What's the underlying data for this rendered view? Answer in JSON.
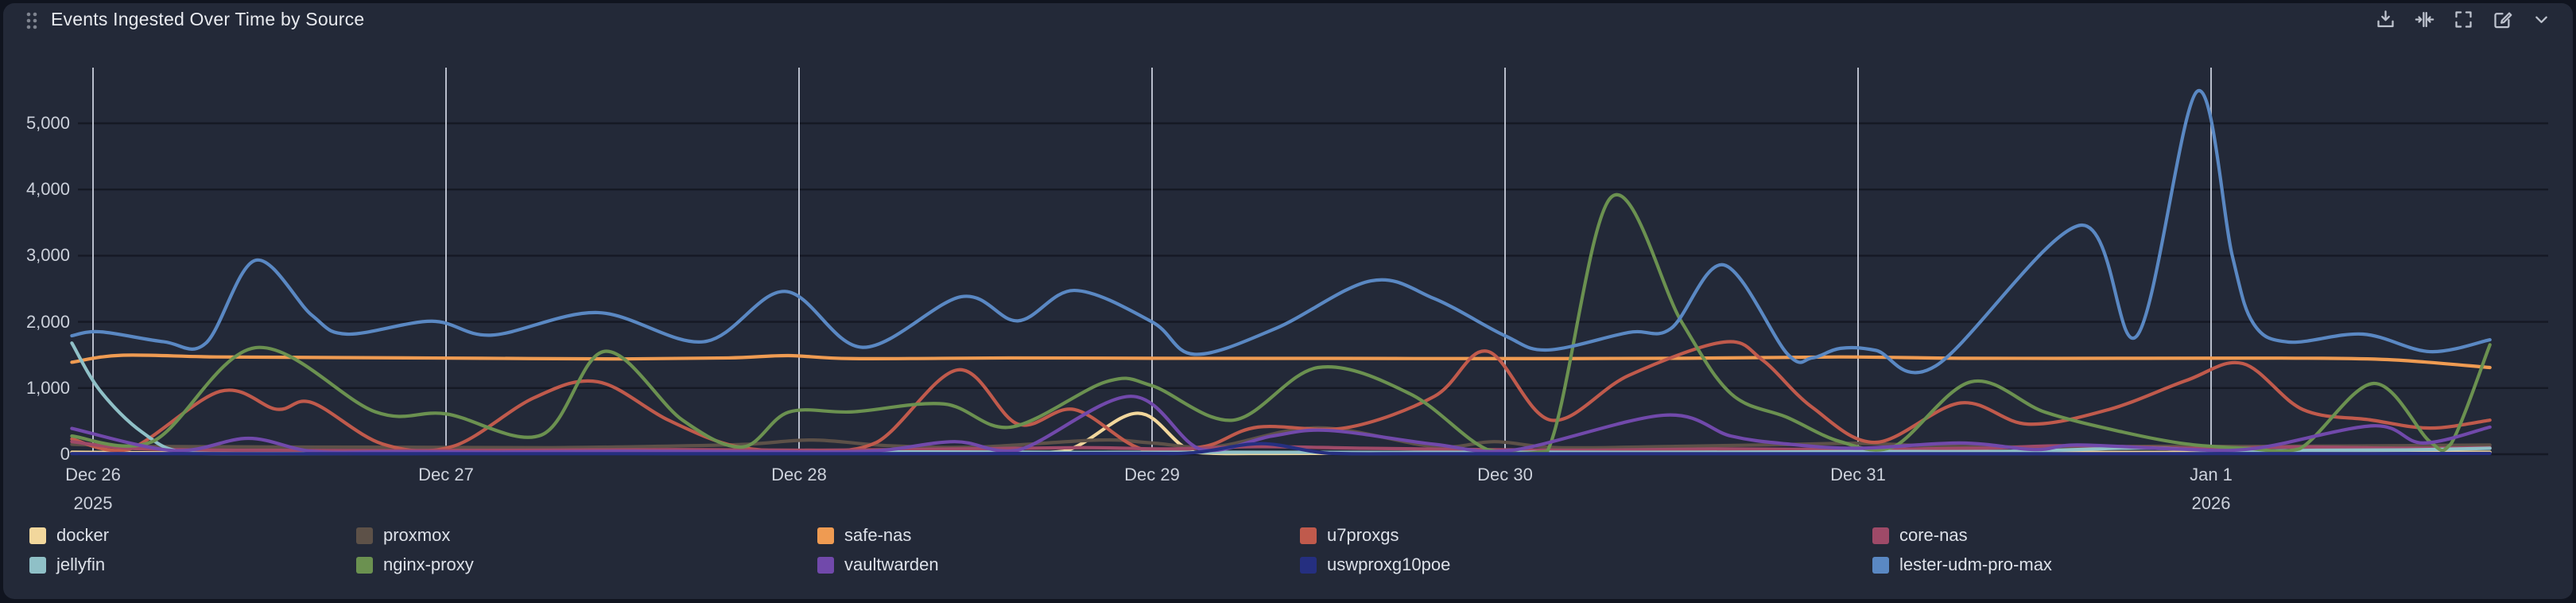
{
  "panel": {
    "title": "Events Ingested Over Time by Source"
  },
  "toolbar": {
    "icons": [
      {
        "name": "download-icon"
      },
      {
        "name": "collapse-columns-icon"
      },
      {
        "name": "fullscreen-icon"
      },
      {
        "name": "edit-icon"
      },
      {
        "name": "chevron-down-icon"
      }
    ]
  },
  "colors": {
    "panel_bg": "#232938",
    "page_bg": "#10141f",
    "h_grid": "#151924",
    "v_grid": "#c9cedb",
    "axis_text": "#ccd1db",
    "title_text": "#e8eaef"
  },
  "chart_data": {
    "type": "line",
    "title": "Events Ingested Over Time by Source",
    "xlabel": "",
    "ylabel": "",
    "grid": {
      "horizontal": true,
      "vertical": true
    },
    "legend_position": "bottom",
    "x_unit": "days since Dec 26 2025 00:00",
    "x_range": [
      -0.06,
      6.95
    ],
    "ylim": [
      0,
      5840
    ],
    "y_ticks": [
      {
        "label": "0",
        "value": 0
      },
      {
        "label": "1,000",
        "value": 1000
      },
      {
        "label": "2,000",
        "value": 2000
      },
      {
        "label": "3,000",
        "value": 3000
      },
      {
        "label": "4,000",
        "value": 4000
      },
      {
        "label": "5,000",
        "value": 5000
      }
    ],
    "x_ticks": [
      {
        "label": "Dec 26",
        "sublabel": "2025",
        "t": 0
      },
      {
        "label": "Dec 27",
        "sublabel": "",
        "t": 1
      },
      {
        "label": "Dec 28",
        "sublabel": "",
        "t": 2
      },
      {
        "label": "Dec 29",
        "sublabel": "",
        "t": 3
      },
      {
        "label": "Dec 30",
        "sublabel": "",
        "t": 4
      },
      {
        "label": "Dec 31",
        "sublabel": "",
        "t": 5
      },
      {
        "label": "Jan 1",
        "sublabel": "2026",
        "t": 6
      }
    ],
    "series": [
      {
        "name": "docker",
        "color": "#f2d79c",
        "points": [
          [
            -0.06,
            30
          ],
          [
            0.3,
            20
          ],
          [
            0.7,
            28
          ],
          [
            1.1,
            22
          ],
          [
            1.5,
            30
          ],
          [
            1.9,
            55
          ],
          [
            2.2,
            30
          ],
          [
            2.5,
            22
          ],
          [
            2.75,
            45
          ],
          [
            2.96,
            620
          ],
          [
            3.12,
            30
          ],
          [
            3.35,
            12
          ],
          [
            3.7,
            18
          ],
          [
            4.0,
            25
          ],
          [
            4.2,
            70
          ],
          [
            4.45,
            25
          ],
          [
            4.8,
            30
          ],
          [
            5.1,
            40
          ],
          [
            5.5,
            30
          ],
          [
            5.9,
            28
          ],
          [
            6.3,
            35
          ],
          [
            6.79,
            30
          ]
        ]
      },
      {
        "name": "proxmox",
        "color": "#5d5148",
        "points": [
          [
            -0.06,
            150
          ],
          [
            0.15,
            118
          ],
          [
            0.5,
            110
          ],
          [
            0.9,
            105
          ],
          [
            1.3,
            100
          ],
          [
            1.6,
            120
          ],
          [
            1.85,
            150
          ],
          [
            2.04,
            215
          ],
          [
            2.25,
            130
          ],
          [
            2.5,
            108
          ],
          [
            2.85,
            215
          ],
          [
            3.0,
            170
          ],
          [
            3.18,
            115
          ],
          [
            3.47,
            400
          ],
          [
            3.8,
            115
          ],
          [
            3.97,
            190
          ],
          [
            4.15,
            100
          ],
          [
            4.5,
            120
          ],
          [
            4.78,
            145
          ],
          [
            5.0,
            165
          ],
          [
            5.25,
            120
          ],
          [
            5.55,
            110
          ],
          [
            5.85,
            120
          ],
          [
            6.1,
            118
          ],
          [
            6.4,
            125
          ],
          [
            6.79,
            140
          ]
        ]
      },
      {
        "name": "safe-nas",
        "color": "#ef9b52",
        "points": [
          [
            -0.06,
            1390
          ],
          [
            0.08,
            1495
          ],
          [
            0.35,
            1470
          ],
          [
            0.7,
            1460
          ],
          [
            1.1,
            1450
          ],
          [
            1.5,
            1440
          ],
          [
            1.8,
            1455
          ],
          [
            1.97,
            1490
          ],
          [
            2.15,
            1445
          ],
          [
            2.6,
            1455
          ],
          [
            3.0,
            1450
          ],
          [
            3.5,
            1448
          ],
          [
            4.0,
            1445
          ],
          [
            4.5,
            1450
          ],
          [
            4.95,
            1470
          ],
          [
            5.3,
            1450
          ],
          [
            5.8,
            1450
          ],
          [
            6.2,
            1452
          ],
          [
            6.5,
            1430
          ],
          [
            6.79,
            1310
          ]
        ]
      },
      {
        "name": "u7proxgs",
        "color": "#c05a4c",
        "points": [
          [
            -0.06,
            230
          ],
          [
            0.1,
            70
          ],
          [
            0.36,
            950
          ],
          [
            0.52,
            680
          ],
          [
            0.62,
            780
          ],
          [
            0.82,
            155
          ],
          [
            1.02,
            120
          ],
          [
            1.25,
            855
          ],
          [
            1.43,
            1095
          ],
          [
            1.63,
            515
          ],
          [
            1.82,
            120
          ],
          [
            2.02,
            60
          ],
          [
            2.22,
            180
          ],
          [
            2.45,
            1275
          ],
          [
            2.62,
            455
          ],
          [
            2.78,
            675
          ],
          [
            2.97,
            80
          ],
          [
            3.15,
            120
          ],
          [
            3.3,
            410
          ],
          [
            3.55,
            400
          ],
          [
            3.8,
            875
          ],
          [
            3.95,
            1555
          ],
          [
            4.13,
            515
          ],
          [
            4.35,
            1190
          ],
          [
            4.62,
            1695
          ],
          [
            4.73,
            1420
          ],
          [
            4.87,
            710
          ],
          [
            5.05,
            180
          ],
          [
            5.29,
            775
          ],
          [
            5.48,
            455
          ],
          [
            5.71,
            675
          ],
          [
            5.93,
            1115
          ],
          [
            6.09,
            1370
          ],
          [
            6.26,
            675
          ],
          [
            6.45,
            520
          ],
          [
            6.62,
            395
          ],
          [
            6.79,
            515
          ]
        ]
      },
      {
        "name": "core-nas",
        "color": "#9e4a68",
        "points": [
          [
            -0.06,
            190
          ],
          [
            0.12,
            85
          ],
          [
            0.45,
            60
          ],
          [
            0.85,
            55
          ],
          [
            1.25,
            60
          ],
          [
            1.65,
            70
          ],
          [
            2.05,
            60
          ],
          [
            2.45,
            80
          ],
          [
            2.8,
            100
          ],
          [
            3.05,
            80
          ],
          [
            3.3,
            115
          ],
          [
            3.6,
            90
          ],
          [
            3.95,
            70
          ],
          [
            4.25,
            60
          ],
          [
            4.6,
            80
          ],
          [
            5.0,
            70
          ],
          [
            5.35,
            90
          ],
          [
            5.6,
            130
          ],
          [
            5.95,
            90
          ],
          [
            6.25,
            110
          ],
          [
            6.55,
            90
          ],
          [
            6.79,
            100
          ]
        ]
      },
      {
        "name": "jellyfin",
        "color": "#8fc0c7",
        "points": [
          [
            -0.06,
            1680
          ],
          [
            0.02,
            960
          ],
          [
            0.14,
            330
          ],
          [
            0.27,
            20
          ],
          [
            0.6,
            10
          ],
          [
            1.0,
            15
          ],
          [
            1.45,
            35
          ],
          [
            1.9,
            28
          ],
          [
            2.35,
            35
          ],
          [
            2.8,
            28
          ],
          [
            3.2,
            30
          ],
          [
            3.7,
            28
          ],
          [
            4.1,
            30
          ],
          [
            4.55,
            30
          ],
          [
            5.0,
            40
          ],
          [
            5.45,
            45
          ],
          [
            5.8,
            95
          ],
          [
            6.05,
            45
          ],
          [
            6.3,
            60
          ],
          [
            6.55,
            65
          ],
          [
            6.79,
            90
          ]
        ]
      },
      {
        "name": "nginx-proxy",
        "color": "#6b9150",
        "points": [
          [
            -0.06,
            275
          ],
          [
            0.17,
            195
          ],
          [
            0.46,
            1610
          ],
          [
            0.8,
            640
          ],
          [
            1.0,
            610
          ],
          [
            1.27,
            290
          ],
          [
            1.45,
            1555
          ],
          [
            1.67,
            515
          ],
          [
            1.84,
            110
          ],
          [
            1.97,
            635
          ],
          [
            2.15,
            640
          ],
          [
            2.41,
            760
          ],
          [
            2.6,
            410
          ],
          [
            2.87,
            1095
          ],
          [
            3.0,
            1035
          ],
          [
            3.23,
            515
          ],
          [
            3.47,
            1310
          ],
          [
            3.73,
            915
          ],
          [
            3.95,
            70
          ],
          [
            4.12,
            45
          ],
          [
            4.3,
            3880
          ],
          [
            4.5,
            2000
          ],
          [
            4.64,
            915
          ],
          [
            4.8,
            555
          ],
          [
            4.95,
            190
          ],
          [
            5.1,
            110
          ],
          [
            5.32,
            1095
          ],
          [
            5.53,
            635
          ],
          [
            5.75,
            335
          ],
          [
            5.93,
            155
          ],
          [
            6.1,
            90
          ],
          [
            6.25,
            80
          ],
          [
            6.46,
            1070
          ],
          [
            6.62,
            190
          ],
          [
            6.68,
            160
          ],
          [
            6.79,
            1655
          ]
        ]
      },
      {
        "name": "vaultwarden",
        "color": "#7149ab",
        "points": [
          [
            -0.06,
            390
          ],
          [
            0.23,
            55
          ],
          [
            0.44,
            240
          ],
          [
            0.62,
            45
          ],
          [
            0.85,
            38
          ],
          [
            1.15,
            32
          ],
          [
            1.5,
            45
          ],
          [
            1.85,
            40
          ],
          [
            2.2,
            45
          ],
          [
            2.44,
            190
          ],
          [
            2.62,
            60
          ],
          [
            2.94,
            875
          ],
          [
            3.14,
            70
          ],
          [
            3.34,
            275
          ],
          [
            3.5,
            360
          ],
          [
            3.8,
            150
          ],
          [
            4.02,
            60
          ],
          [
            4.45,
            590
          ],
          [
            4.64,
            275
          ],
          [
            4.8,
            155
          ],
          [
            5.0,
            90
          ],
          [
            5.29,
            170
          ],
          [
            5.5,
            70
          ],
          [
            5.62,
            140
          ],
          [
            5.9,
            80
          ],
          [
            6.12,
            85
          ],
          [
            6.46,
            430
          ],
          [
            6.6,
            170
          ],
          [
            6.79,
            410
          ]
        ]
      },
      {
        "name": "uswproxg10poe",
        "color": "#252f80",
        "points": [
          [
            -0.06,
            10
          ],
          [
            0.5,
            8
          ],
          [
            1.0,
            8
          ],
          [
            1.5,
            8
          ],
          [
            2.0,
            8
          ],
          [
            2.5,
            10
          ],
          [
            2.95,
            12
          ],
          [
            3.12,
            25
          ],
          [
            3.31,
            160
          ],
          [
            3.5,
            15
          ],
          [
            3.75,
            8
          ],
          [
            4.2,
            8
          ],
          [
            4.7,
            8
          ],
          [
            5.2,
            8
          ],
          [
            5.7,
            8
          ],
          [
            6.1,
            10
          ],
          [
            6.45,
            10
          ],
          [
            6.79,
            12
          ]
        ]
      },
      {
        "name": "lester-udm-pro-max",
        "color": "#5a88c3",
        "points": [
          [
            -0.06,
            1790
          ],
          [
            0.02,
            1850
          ],
          [
            0.2,
            1700
          ],
          [
            0.32,
            1680
          ],
          [
            0.46,
            2930
          ],
          [
            0.62,
            2100
          ],
          [
            0.72,
            1815
          ],
          [
            0.96,
            2010
          ],
          [
            1.13,
            1800
          ],
          [
            1.43,
            2140
          ],
          [
            1.73,
            1700
          ],
          [
            1.96,
            2460
          ],
          [
            2.18,
            1615
          ],
          [
            2.46,
            2380
          ],
          [
            2.62,
            2015
          ],
          [
            2.78,
            2475
          ],
          [
            3.0,
            2000
          ],
          [
            3.12,
            1510
          ],
          [
            3.35,
            1900
          ],
          [
            3.62,
            2620
          ],
          [
            3.8,
            2350
          ],
          [
            4.0,
            1790
          ],
          [
            4.12,
            1575
          ],
          [
            4.35,
            1840
          ],
          [
            4.47,
            1900
          ],
          [
            4.62,
            2860
          ],
          [
            4.8,
            1515
          ],
          [
            4.87,
            1455
          ],
          [
            4.95,
            1600
          ],
          [
            5.05,
            1570
          ],
          [
            5.22,
            1335
          ],
          [
            5.63,
            3460
          ],
          [
            5.79,
            1790
          ],
          [
            5.96,
            5480
          ],
          [
            6.06,
            3000
          ],
          [
            6.12,
            1975
          ],
          [
            6.22,
            1695
          ],
          [
            6.43,
            1815
          ],
          [
            6.62,
            1550
          ],
          [
            6.79,
            1730
          ]
        ]
      }
    ]
  }
}
